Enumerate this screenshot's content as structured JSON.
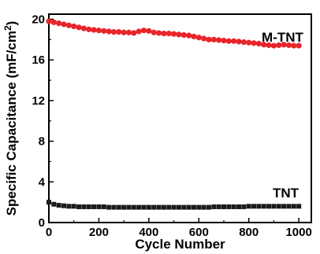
{
  "chart_data": {
    "type": "scatter",
    "xlabel": "Cycle Number",
    "ylabel_main": "Specific Capacitance (mF/cm",
    "ylabel_sup": "2",
    "ylabel_end": ")",
    "xlim": [
      0,
      1050
    ],
    "ylim": [
      0,
      20.5
    ],
    "xticks": [
      0,
      200,
      400,
      600,
      800,
      1000
    ],
    "yticks": [
      0,
      4,
      8,
      12,
      16,
      20
    ],
    "grid": false,
    "series": [
      {
        "name": "M-TNT",
        "marker": "circle",
        "color": "#e8252a",
        "x": [
          0,
          20,
          40,
          60,
          80,
          100,
          120,
          140,
          160,
          180,
          200,
          220,
          240,
          260,
          280,
          300,
          320,
          340,
          360,
          380,
          400,
          420,
          440,
          460,
          480,
          500,
          520,
          540,
          560,
          580,
          600,
          620,
          640,
          660,
          680,
          700,
          720,
          740,
          760,
          780,
          800,
          820,
          840,
          860,
          880,
          900,
          920,
          940,
          960,
          980,
          1000
        ],
        "values": [
          19.8,
          19.7,
          19.6,
          19.5,
          19.4,
          19.3,
          19.2,
          19.1,
          19.0,
          18.95,
          18.9,
          18.85,
          18.8,
          18.75,
          18.75,
          18.7,
          18.7,
          18.65,
          18.8,
          18.9,
          18.85,
          18.7,
          18.65,
          18.6,
          18.6,
          18.55,
          18.5,
          18.45,
          18.4,
          18.3,
          18.2,
          18.1,
          18.0,
          18.0,
          17.95,
          17.9,
          17.85,
          17.85,
          17.8,
          17.75,
          17.7,
          17.65,
          17.6,
          17.5,
          17.45,
          17.4,
          17.45,
          17.5,
          17.45,
          17.4,
          17.4
        ]
      },
      {
        "name": "TNT",
        "marker": "square",
        "color": "#1a1a1a",
        "x": [
          0,
          20,
          40,
          60,
          80,
          100,
          120,
          140,
          160,
          180,
          200,
          220,
          240,
          260,
          280,
          300,
          320,
          340,
          360,
          380,
          400,
          420,
          440,
          460,
          480,
          500,
          520,
          540,
          560,
          580,
          600,
          620,
          640,
          660,
          680,
          700,
          720,
          740,
          760,
          780,
          800,
          820,
          840,
          860,
          880,
          900,
          920,
          940,
          960,
          980,
          1000
        ],
        "values": [
          2.0,
          1.8,
          1.7,
          1.65,
          1.6,
          1.6,
          1.55,
          1.55,
          1.55,
          1.55,
          1.55,
          1.55,
          1.5,
          1.5,
          1.5,
          1.5,
          1.5,
          1.5,
          1.5,
          1.5,
          1.5,
          1.5,
          1.5,
          1.5,
          1.5,
          1.5,
          1.5,
          1.5,
          1.5,
          1.5,
          1.5,
          1.5,
          1.5,
          1.55,
          1.55,
          1.55,
          1.55,
          1.55,
          1.55,
          1.55,
          1.6,
          1.6,
          1.6,
          1.6,
          1.6,
          1.6,
          1.6,
          1.6,
          1.6,
          1.6,
          1.6
        ]
      }
    ]
  }
}
